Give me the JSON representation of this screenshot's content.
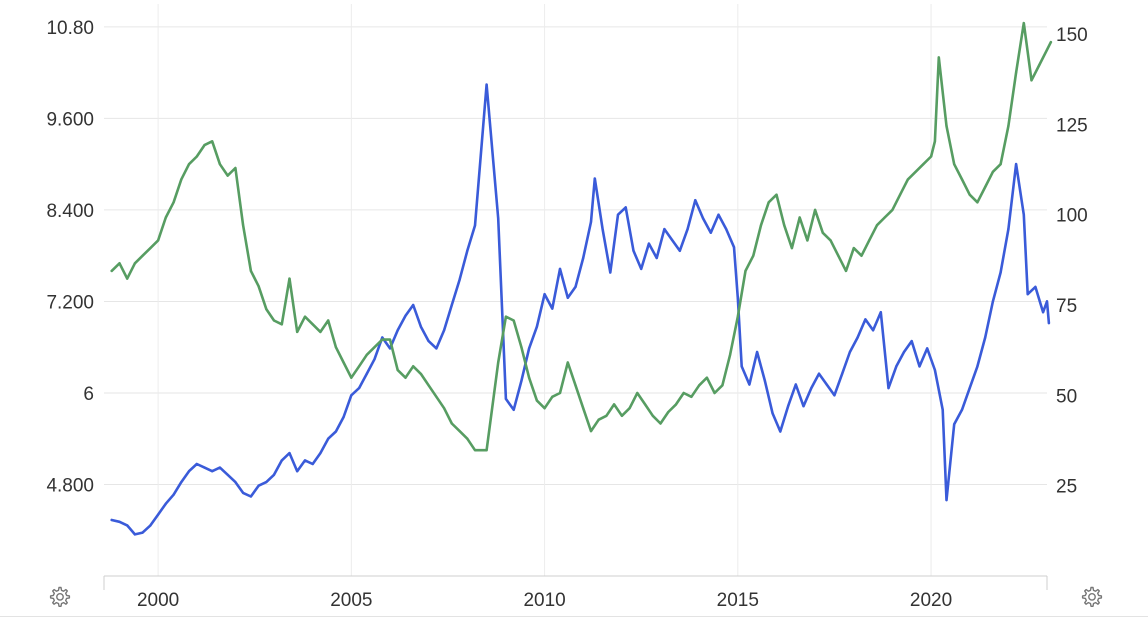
{
  "chart_data": {
    "type": "line",
    "title": "",
    "xlabel": "",
    "ylabel": "",
    "xlim": [
      1998.6,
      2023.0
    ],
    "x_ticks": [
      "2000",
      "2005",
      "2010",
      "2015",
      "2020"
    ],
    "y_left": {
      "ticks": [
        "4.800",
        "6",
        "7.200",
        "8.400",
        "9.600",
        "10.80"
      ],
      "tick_values": [
        4.8,
        6.0,
        7.2,
        8.4,
        9.6,
        10.8
      ],
      "range": [
        3.6,
        11.1
      ]
    },
    "y_right": {
      "ticks": [
        "25",
        "50",
        "75",
        "100",
        "125",
        "150"
      ],
      "tick_values": [
        25,
        50,
        75,
        100,
        125,
        150
      ],
      "range": [
        0,
        158.3
      ]
    },
    "grid": true,
    "series": [
      {
        "color": "#3a5bd9",
        "axis": "right",
        "points": [
          [
            1998.8,
            15.5
          ],
          [
            1999.0,
            15
          ],
          [
            1999.2,
            14
          ],
          [
            1999.4,
            11.5
          ],
          [
            1999.6,
            12
          ],
          [
            1999.8,
            14
          ],
          [
            2000.0,
            17
          ],
          [
            2000.2,
            20
          ],
          [
            2000.4,
            22.5
          ],
          [
            2000.6,
            26
          ],
          [
            2000.8,
            29
          ],
          [
            2001.0,
            31
          ],
          [
            2001.2,
            30
          ],
          [
            2001.4,
            29
          ],
          [
            2001.6,
            30
          ],
          [
            2001.8,
            28
          ],
          [
            2002.0,
            26
          ],
          [
            2002.2,
            23
          ],
          [
            2002.4,
            22
          ],
          [
            2002.6,
            25
          ],
          [
            2002.8,
            26
          ],
          [
            2003.0,
            28
          ],
          [
            2003.2,
            32
          ],
          [
            2003.4,
            34
          ],
          [
            2003.6,
            29
          ],
          [
            2003.8,
            32
          ],
          [
            2004.0,
            31
          ],
          [
            2004.2,
            34
          ],
          [
            2004.4,
            38
          ],
          [
            2004.6,
            40
          ],
          [
            2004.8,
            44
          ],
          [
            2005.0,
            50
          ],
          [
            2005.2,
            52
          ],
          [
            2005.4,
            56
          ],
          [
            2005.6,
            60
          ],
          [
            2005.8,
            66
          ],
          [
            2006.0,
            63
          ],
          [
            2006.2,
            68
          ],
          [
            2006.4,
            72
          ],
          [
            2006.6,
            75
          ],
          [
            2006.8,
            69
          ],
          [
            2007.0,
            65
          ],
          [
            2007.2,
            63
          ],
          [
            2007.4,
            68
          ],
          [
            2007.6,
            75
          ],
          [
            2007.8,
            82
          ],
          [
            2008.0,
            90
          ],
          [
            2008.2,
            97
          ],
          [
            2008.5,
            136
          ],
          [
            2008.8,
            99
          ],
          [
            2009.0,
            49
          ],
          [
            2009.2,
            46
          ],
          [
            2009.4,
            54
          ],
          [
            2009.6,
            63
          ],
          [
            2009.8,
            69
          ],
          [
            2010.0,
            78
          ],
          [
            2010.2,
            74
          ],
          [
            2010.4,
            85
          ],
          [
            2010.6,
            77
          ],
          [
            2010.8,
            80
          ],
          [
            2011.0,
            88
          ],
          [
            2011.2,
            98
          ],
          [
            2011.3,
            110
          ],
          [
            2011.5,
            96
          ],
          [
            2011.7,
            84
          ],
          [
            2011.9,
            100
          ],
          [
            2012.1,
            102
          ],
          [
            2012.3,
            90
          ],
          [
            2012.5,
            85
          ],
          [
            2012.7,
            92
          ],
          [
            2012.9,
            88
          ],
          [
            2013.1,
            96
          ],
          [
            2013.3,
            93
          ],
          [
            2013.5,
            90
          ],
          [
            2013.7,
            96
          ],
          [
            2013.9,
            104
          ],
          [
            2014.1,
            99
          ],
          [
            2014.3,
            95
          ],
          [
            2014.5,
            100
          ],
          [
            2014.7,
            96
          ],
          [
            2014.9,
            91
          ],
          [
            2015.0,
            77
          ],
          [
            2015.1,
            58
          ],
          [
            2015.3,
            53
          ],
          [
            2015.5,
            62
          ],
          [
            2015.7,
            54
          ],
          [
            2015.9,
            45
          ],
          [
            2016.1,
            40
          ],
          [
            2016.3,
            47
          ],
          [
            2016.5,
            53
          ],
          [
            2016.7,
            47
          ],
          [
            2016.9,
            52
          ],
          [
            2017.1,
            56
          ],
          [
            2017.3,
            53
          ],
          [
            2017.5,
            50
          ],
          [
            2017.7,
            56
          ],
          [
            2017.9,
            62
          ],
          [
            2018.1,
            66
          ],
          [
            2018.3,
            71
          ],
          [
            2018.5,
            68
          ],
          [
            2018.7,
            73
          ],
          [
            2018.9,
            52
          ],
          [
            2019.1,
            58
          ],
          [
            2019.3,
            62
          ],
          [
            2019.5,
            65
          ],
          [
            2019.7,
            58
          ],
          [
            2019.9,
            63
          ],
          [
            2020.1,
            57
          ],
          [
            2020.3,
            46
          ],
          [
            2020.4,
            21
          ],
          [
            2020.6,
            42
          ],
          [
            2020.8,
            46
          ],
          [
            2021.0,
            52
          ],
          [
            2021.2,
            58
          ],
          [
            2021.4,
            66
          ],
          [
            2021.6,
            76
          ],
          [
            2021.8,
            84
          ],
          [
            2022.0,
            96
          ],
          [
            2022.2,
            114
          ],
          [
            2022.4,
            100
          ],
          [
            2022.5,
            78
          ],
          [
            2022.7,
            80
          ],
          [
            2022.9,
            73
          ],
          [
            2023.0,
            76
          ],
          [
            2023.05,
            70
          ]
        ]
      },
      {
        "color": "#579d62",
        "axis": "left",
        "points": [
          [
            1998.8,
            7.6
          ],
          [
            1999.0,
            7.7
          ],
          [
            1999.2,
            7.5
          ],
          [
            1999.4,
            7.7
          ],
          [
            1999.6,
            7.8
          ],
          [
            1999.8,
            7.9
          ],
          [
            2000.0,
            8.0
          ],
          [
            2000.2,
            8.3
          ],
          [
            2000.4,
            8.5
          ],
          [
            2000.6,
            8.8
          ],
          [
            2000.8,
            9.0
          ],
          [
            2001.0,
            9.1
          ],
          [
            2001.2,
            9.25
          ],
          [
            2001.4,
            9.3
          ],
          [
            2001.6,
            9.0
          ],
          [
            2001.8,
            8.85
          ],
          [
            2002.0,
            8.95
          ],
          [
            2002.2,
            8.2
          ],
          [
            2002.4,
            7.6
          ],
          [
            2002.6,
            7.4
          ],
          [
            2002.8,
            7.1
          ],
          [
            2003.0,
            6.95
          ],
          [
            2003.2,
            6.9
          ],
          [
            2003.4,
            7.5
          ],
          [
            2003.6,
            6.8
          ],
          [
            2003.8,
            7.0
          ],
          [
            2004.0,
            6.9
          ],
          [
            2004.2,
            6.8
          ],
          [
            2004.4,
            6.95
          ],
          [
            2004.6,
            6.6
          ],
          [
            2004.8,
            6.4
          ],
          [
            2005.0,
            6.2
          ],
          [
            2005.2,
            6.35
          ],
          [
            2005.4,
            6.5
          ],
          [
            2005.6,
            6.6
          ],
          [
            2005.8,
            6.7
          ],
          [
            2006.0,
            6.7
          ],
          [
            2006.2,
            6.3
          ],
          [
            2006.4,
            6.2
          ],
          [
            2006.6,
            6.35
          ],
          [
            2006.8,
            6.25
          ],
          [
            2007.0,
            6.1
          ],
          [
            2007.2,
            5.95
          ],
          [
            2007.4,
            5.8
          ],
          [
            2007.6,
            5.6
          ],
          [
            2007.8,
            5.5
          ],
          [
            2008.0,
            5.4
          ],
          [
            2008.2,
            5.25
          ],
          [
            2008.5,
            5.25
          ],
          [
            2008.8,
            6.4
          ],
          [
            2009.0,
            7.0
          ],
          [
            2009.2,
            6.95
          ],
          [
            2009.4,
            6.6
          ],
          [
            2009.6,
            6.2
          ],
          [
            2009.8,
            5.9
          ],
          [
            2010.0,
            5.8
          ],
          [
            2010.2,
            5.95
          ],
          [
            2010.4,
            6.0
          ],
          [
            2010.6,
            6.4
          ],
          [
            2010.8,
            6.1
          ],
          [
            2011.0,
            5.8
          ],
          [
            2011.2,
            5.5
          ],
          [
            2011.4,
            5.65
          ],
          [
            2011.6,
            5.7
          ],
          [
            2011.8,
            5.85
          ],
          [
            2012.0,
            5.7
          ],
          [
            2012.2,
            5.8
          ],
          [
            2012.4,
            6.0
          ],
          [
            2012.6,
            5.85
          ],
          [
            2012.8,
            5.7
          ],
          [
            2013.0,
            5.6
          ],
          [
            2013.2,
            5.75
          ],
          [
            2013.4,
            5.85
          ],
          [
            2013.6,
            6.0
          ],
          [
            2013.8,
            5.95
          ],
          [
            2014.0,
            6.1
          ],
          [
            2014.2,
            6.2
          ],
          [
            2014.4,
            6.0
          ],
          [
            2014.6,
            6.1
          ],
          [
            2014.8,
            6.5
          ],
          [
            2015.0,
            7.0
          ],
          [
            2015.2,
            7.6
          ],
          [
            2015.4,
            7.8
          ],
          [
            2015.6,
            8.2
          ],
          [
            2015.8,
            8.5
          ],
          [
            2016.0,
            8.6
          ],
          [
            2016.2,
            8.2
          ],
          [
            2016.4,
            7.9
          ],
          [
            2016.6,
            8.3
          ],
          [
            2016.8,
            8.0
          ],
          [
            2017.0,
            8.4
          ],
          [
            2017.2,
            8.1
          ],
          [
            2017.4,
            8.0
          ],
          [
            2017.6,
            7.8
          ],
          [
            2017.8,
            7.6
          ],
          [
            2018.0,
            7.9
          ],
          [
            2018.2,
            7.8
          ],
          [
            2018.4,
            8.0
          ],
          [
            2018.6,
            8.2
          ],
          [
            2018.8,
            8.3
          ],
          [
            2019.0,
            8.4
          ],
          [
            2019.2,
            8.6
          ],
          [
            2019.4,
            8.8
          ],
          [
            2019.6,
            8.9
          ],
          [
            2019.8,
            9.0
          ],
          [
            2020.0,
            9.1
          ],
          [
            2020.1,
            9.3
          ],
          [
            2020.2,
            10.4
          ],
          [
            2020.4,
            9.5
          ],
          [
            2020.6,
            9.0
          ],
          [
            2020.8,
            8.8
          ],
          [
            2021.0,
            8.6
          ],
          [
            2021.2,
            8.5
          ],
          [
            2021.4,
            8.7
          ],
          [
            2021.6,
            8.9
          ],
          [
            2021.8,
            9.0
          ],
          [
            2022.0,
            9.5
          ],
          [
            2022.2,
            10.2
          ],
          [
            2022.4,
            10.85
          ],
          [
            2022.6,
            10.1
          ],
          [
            2022.8,
            10.3
          ],
          [
            2023.0,
            10.5
          ],
          [
            2023.1,
            10.6
          ]
        ]
      }
    ]
  }
}
